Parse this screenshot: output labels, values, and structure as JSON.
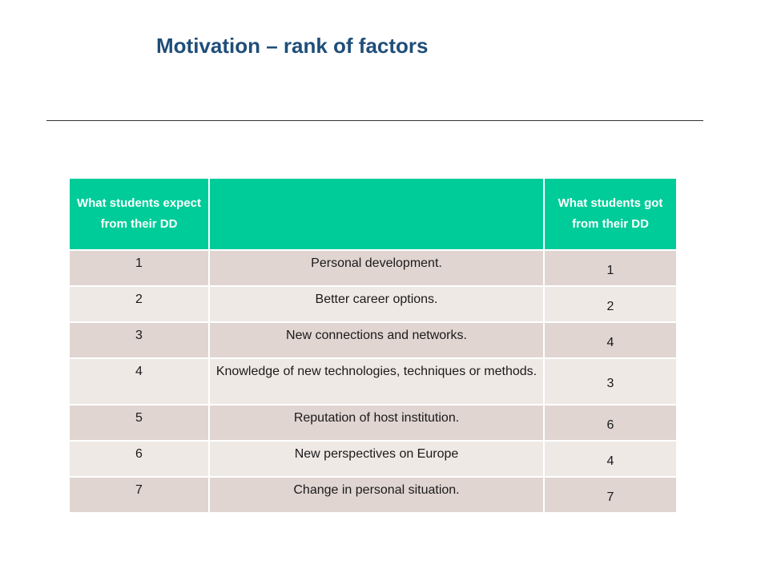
{
  "slide": {
    "title": "Motivation – rank of factors"
  },
  "table": {
    "headers": {
      "expect": "What students expect from their DD",
      "factor": "",
      "got": "What students got from their DD"
    },
    "rows": [
      {
        "expect": "1",
        "factor": "Personal development.",
        "got": "1"
      },
      {
        "expect": "2",
        "factor": "Better career options.",
        "got": "2"
      },
      {
        "expect": "3",
        "factor": "New connections and networks.",
        "got": "4"
      },
      {
        "expect": "4",
        "factor": "Knowledge of new technologies, techniques or methods.",
        "got": "3"
      },
      {
        "expect": "5",
        "factor": "Reputation of host institution.",
        "got": "6"
      },
      {
        "expect": "6",
        "factor": "New perspectives on Europe",
        "got": "4"
      },
      {
        "expect": "7",
        "factor": "Change in personal situation.",
        "got": "7"
      }
    ]
  },
  "colors": {
    "title": "#1f4e79",
    "header_bg": "#00cc99",
    "header_text": "#ffffff",
    "row_odd": "#e0d5d1",
    "row_even": "#efe9e6"
  }
}
